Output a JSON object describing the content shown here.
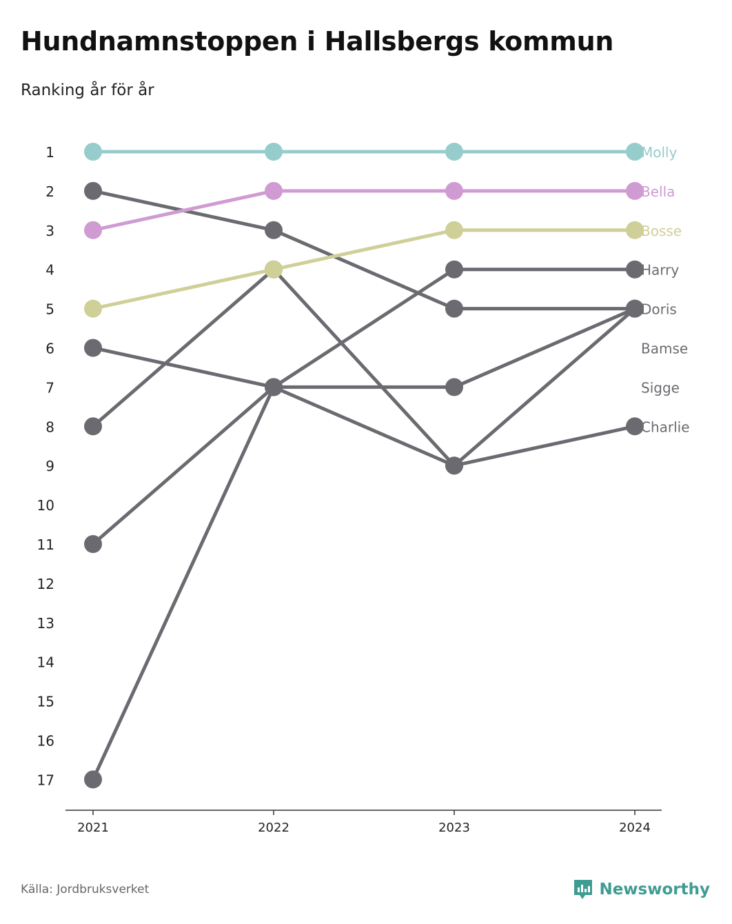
{
  "title": "Hundnamnstoppen i Hallsbergs kommun",
  "subtitle": "Ranking år för år",
  "source": "Källa: Jordbruksverket",
  "brand": "Newsworthy",
  "colors": {
    "Molly": "#96cccc",
    "Bella": "#cf9bd2",
    "Bosse": "#cfcf98",
    "other": "#6b6a70",
    "brand": "#3f9c92",
    "axis": "#333333"
  },
  "icons": {
    "brand": "newsworthy-logo-icon"
  },
  "chart_data": {
    "type": "line",
    "x": [
      "2021",
      "2022",
      "2023",
      "2024"
    ],
    "y_ticks": [
      "1",
      "2",
      "3",
      "4",
      "5",
      "6",
      "7",
      "8",
      "9",
      "10",
      "11",
      "12",
      "13",
      "14",
      "15",
      "16",
      "17"
    ],
    "ylim": [
      1,
      17
    ],
    "y_reversed": true,
    "legend": "inline-right",
    "series": [
      {
        "name": "Molly",
        "values": [
          1,
          1,
          1,
          1
        ]
      },
      {
        "name": "Bella",
        "values": [
          3,
          2,
          2,
          2
        ]
      },
      {
        "name": "Bosse",
        "values": [
          5,
          4,
          3,
          3
        ]
      },
      {
        "name": "Harry",
        "values": [
          11,
          7,
          4,
          4
        ]
      },
      {
        "name": "Doris",
        "values": [
          2,
          3,
          5,
          5
        ]
      },
      {
        "name": "Bamse",
        "values": [
          6,
          7,
          7,
          5
        ]
      },
      {
        "name": "Sigge",
        "values": [
          8,
          4,
          9,
          5
        ]
      },
      {
        "name": "Charlie",
        "values": [
          17,
          7,
          9,
          8
        ]
      }
    ]
  }
}
